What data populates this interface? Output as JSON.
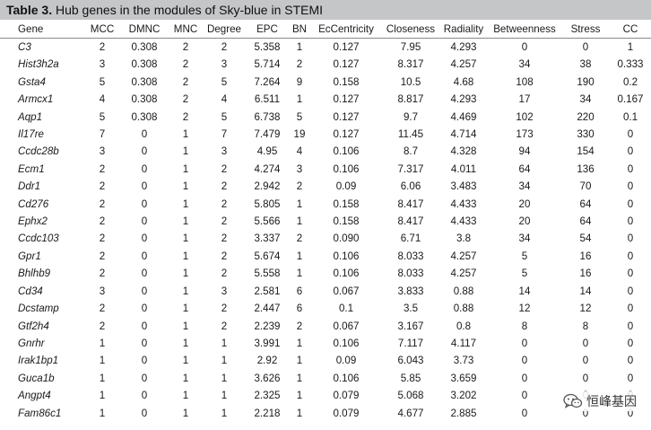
{
  "title": {
    "label": "Table 3.",
    "text": " Hub genes in the modules of Sky-blue in STEMI"
  },
  "headers": [
    "Gene",
    "MCC",
    "DMNC",
    "MNC",
    "Degree",
    "EPC",
    "BN",
    "EcCentricity",
    "Closeness",
    "Radiality",
    "Betweenness",
    "Stress",
    "CC"
  ],
  "rows": [
    [
      "C3",
      "2",
      "0.308",
      "2",
      "2",
      "5.358",
      "1",
      "0.127",
      "7.95",
      "4.293",
      "0",
      "0",
      "1"
    ],
    [
      "Hist3h2a",
      "3",
      "0.308",
      "2",
      "3",
      "5.714",
      "2",
      "0.127",
      "8.317",
      "4.257",
      "34",
      "38",
      "0.333"
    ],
    [
      "Gsta4",
      "5",
      "0.308",
      "2",
      "5",
      "7.264",
      "9",
      "0.158",
      "10.5",
      "4.68",
      "108",
      "190",
      "0.2"
    ],
    [
      "Armcx1",
      "4",
      "0.308",
      "2",
      "4",
      "6.511",
      "1",
      "0.127",
      "8.817",
      "4.293",
      "17",
      "34",
      "0.167"
    ],
    [
      "Aqp1",
      "5",
      "0.308",
      "2",
      "5",
      "6.738",
      "5",
      "0.127",
      "9.7",
      "4.469",
      "102",
      "220",
      "0.1"
    ],
    [
      "Il17re",
      "7",
      "0",
      "1",
      "7",
      "7.479",
      "19",
      "0.127",
      "11.45",
      "4.714",
      "173",
      "330",
      "0"
    ],
    [
      "Ccdc28b",
      "3",
      "0",
      "1",
      "3",
      "4.95",
      "4",
      "0.106",
      "8.7",
      "4.328",
      "94",
      "154",
      "0"
    ],
    [
      "Ecm1",
      "2",
      "0",
      "1",
      "2",
      "4.274",
      "3",
      "0.106",
      "7.317",
      "4.011",
      "64",
      "136",
      "0"
    ],
    [
      "Ddr1",
      "2",
      "0",
      "1",
      "2",
      "2.942",
      "2",
      "0.09",
      "6.06",
      "3.483",
      "34",
      "70",
      "0"
    ],
    [
      "Cd276",
      "2",
      "0",
      "1",
      "2",
      "5.805",
      "1",
      "0.158",
      "8.417",
      "4.433",
      "20",
      "64",
      "0"
    ],
    [
      "Ephx2",
      "2",
      "0",
      "1",
      "2",
      "5.566",
      "1",
      "0.158",
      "8.417",
      "4.433",
      "20",
      "64",
      "0"
    ],
    [
      "Ccdc103",
      "2",
      "0",
      "1",
      "2",
      "3.337",
      "2",
      "0.090",
      "6.71",
      "3.8",
      "34",
      "54",
      "0"
    ],
    [
      "Gpr1",
      "2",
      "0",
      "1",
      "2",
      "5.674",
      "1",
      "0.106",
      "8.033",
      "4.257",
      "5",
      "16",
      "0"
    ],
    [
      "Bhlhb9",
      "2",
      "0",
      "1",
      "2",
      "5.558",
      "1",
      "0.106",
      "8.033",
      "4.257",
      "5",
      "16",
      "0"
    ],
    [
      "Cd34",
      "3",
      "0",
      "1",
      "3",
      "2.581",
      "6",
      "0.067",
      "3.833",
      "0.88",
      "14",
      "14",
      "0"
    ],
    [
      "Dcstamp",
      "2",
      "0",
      "1",
      "2",
      "2.447",
      "6",
      "0.1",
      "3.5",
      "0.88",
      "12",
      "12",
      "0"
    ],
    [
      "Gtf2h4",
      "2",
      "0",
      "1",
      "2",
      "2.239",
      "2",
      "0.067",
      "3.167",
      "0.8",
      "8",
      "8",
      "0"
    ],
    [
      "Gnrhr",
      "1",
      "0",
      "1",
      "1",
      "3.991",
      "1",
      "0.106",
      "7.117",
      "4.117",
      "0",
      "0",
      "0"
    ],
    [
      "Irak1bp1",
      "1",
      "0",
      "1",
      "1",
      "2.92",
      "1",
      "0.09",
      "6.043",
      "3.73",
      "0",
      "0",
      "0"
    ],
    [
      "Guca1b",
      "1",
      "0",
      "1",
      "1",
      "3.626",
      "1",
      "0.106",
      "5.85",
      "3.659",
      "0",
      "0",
      "0"
    ],
    [
      "Angpt4",
      "1",
      "0",
      "1",
      "1",
      "2.325",
      "1",
      "0.079",
      "5.068",
      "3.202",
      "0",
      "0",
      "0"
    ],
    [
      "Fam86c1",
      "1",
      "0",
      "1",
      "1",
      "2.218",
      "1",
      "0.079",
      "4.677",
      "2.885",
      "0",
      "0",
      "0"
    ]
  ],
  "watermark": {
    "text": "恒峰基因",
    "icon": "wechat-icon"
  }
}
